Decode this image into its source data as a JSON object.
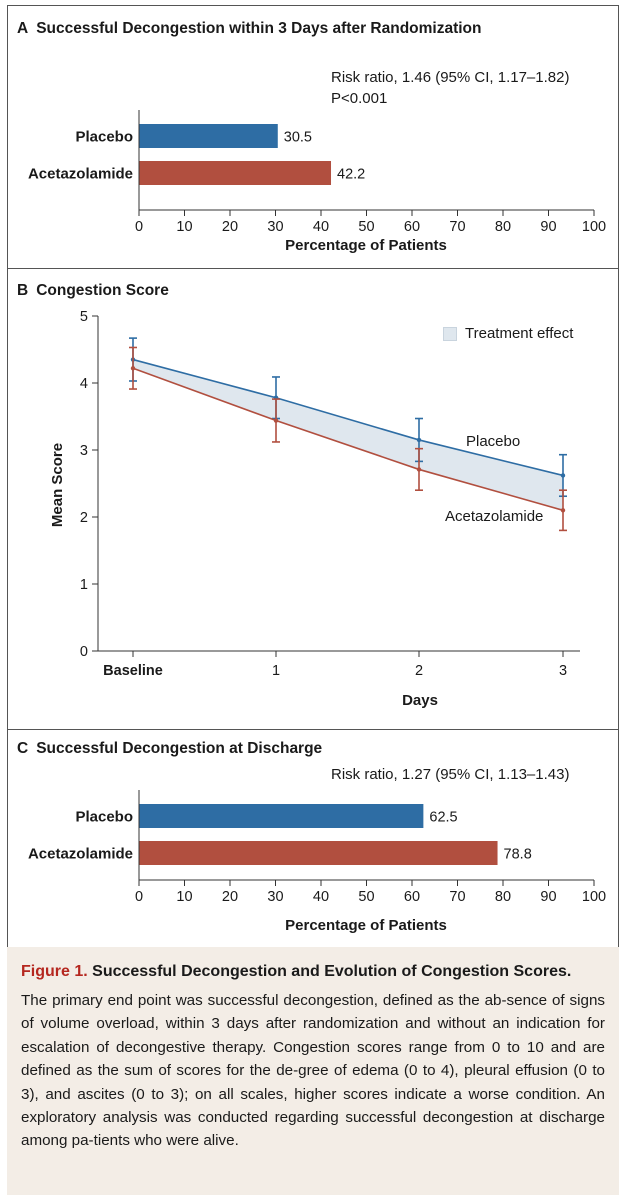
{
  "panels": {
    "a": {
      "letter": "A",
      "title": "Successful Decongestion within 3 Days after Randomization",
      "stat_line1": "Risk ratio, 1.46 (95% CI, 1.17–1.82)",
      "stat_line2": "P<0.001"
    },
    "b": {
      "letter": "B",
      "title": "Congestion Score",
      "legend_label": "Treatment effect"
    },
    "c": {
      "letter": "C",
      "title": "Successful Decongestion at Discharge",
      "stat_line1": "Risk ratio, 1.27 (95% CI, 1.13–1.43)"
    }
  },
  "chart_data": [
    {
      "type": "bar",
      "orientation": "horizontal",
      "categories": [
        "Placebo",
        "Acetazolamide"
      ],
      "values": [
        30.5,
        42.2
      ],
      "data_labels": [
        "30.5",
        "42.2"
      ],
      "colors": [
        "#2e6da4",
        "#b14f3f"
      ],
      "xlabel": "Percentage of Patients",
      "xlim": [
        0,
        100
      ],
      "xticks": [
        0,
        10,
        20,
        30,
        40,
        50,
        60,
        70,
        80,
        90,
        100
      ],
      "grid": false
    },
    {
      "type": "line",
      "x": [
        "Baseline",
        "1",
        "2",
        "3"
      ],
      "series": [
        {
          "name": "Placebo",
          "color": "#2e6da4",
          "values": [
            4.35,
            3.78,
            3.15,
            2.62
          ],
          "ci_low": [
            4.03,
            3.47,
            2.83,
            2.31
          ],
          "ci_high": [
            4.67,
            4.09,
            3.47,
            2.93
          ]
        },
        {
          "name": "Acetazolamide",
          "color": "#b14f3f",
          "values": [
            4.22,
            3.44,
            2.71,
            2.1
          ],
          "ci_low": [
            3.91,
            3.12,
            2.4,
            1.8
          ],
          "ci_high": [
            4.53,
            3.76,
            3.02,
            2.4
          ]
        }
      ],
      "shaded_region": {
        "label": "Treatment effect",
        "color": "#dfe7ee"
      },
      "xlabel": "Days",
      "ylabel": "Mean Score",
      "ylim": [
        0,
        5
      ],
      "yticks": [
        0,
        1,
        2,
        3,
        4,
        5
      ],
      "legend_position": "top-right",
      "grid": false
    },
    {
      "type": "bar",
      "orientation": "horizontal",
      "categories": [
        "Placebo",
        "Acetazolamide"
      ],
      "values": [
        62.5,
        78.8
      ],
      "data_labels": [
        "62.5",
        "78.8"
      ],
      "colors": [
        "#2e6da4",
        "#b14f3f"
      ],
      "xlabel": "Percentage of Patients",
      "xlim": [
        0,
        100
      ],
      "xticks": [
        0,
        10,
        20,
        30,
        40,
        50,
        60,
        70,
        80,
        90,
        100
      ],
      "grid": false
    }
  ],
  "caption": {
    "label": "Figure 1.",
    "title": "Successful Decongestion and Evolution of Congestion Scores.",
    "body": "The primary end point was successful decongestion, defined as the ab-sence of signs of volume overload, within 3 days after randomization and without an indication for escalation of decongestive therapy. Congestion scores range from 0 to 10 and are defined as the sum of scores for the de-gree of edema (0 to 4), pleural effusion (0 to 3), and ascites (0 to 3); on all scales, higher scores indicate a worse condition. An exploratory analysis was conducted regarding successful decongestion at discharge among pa-tients who were alive."
  }
}
